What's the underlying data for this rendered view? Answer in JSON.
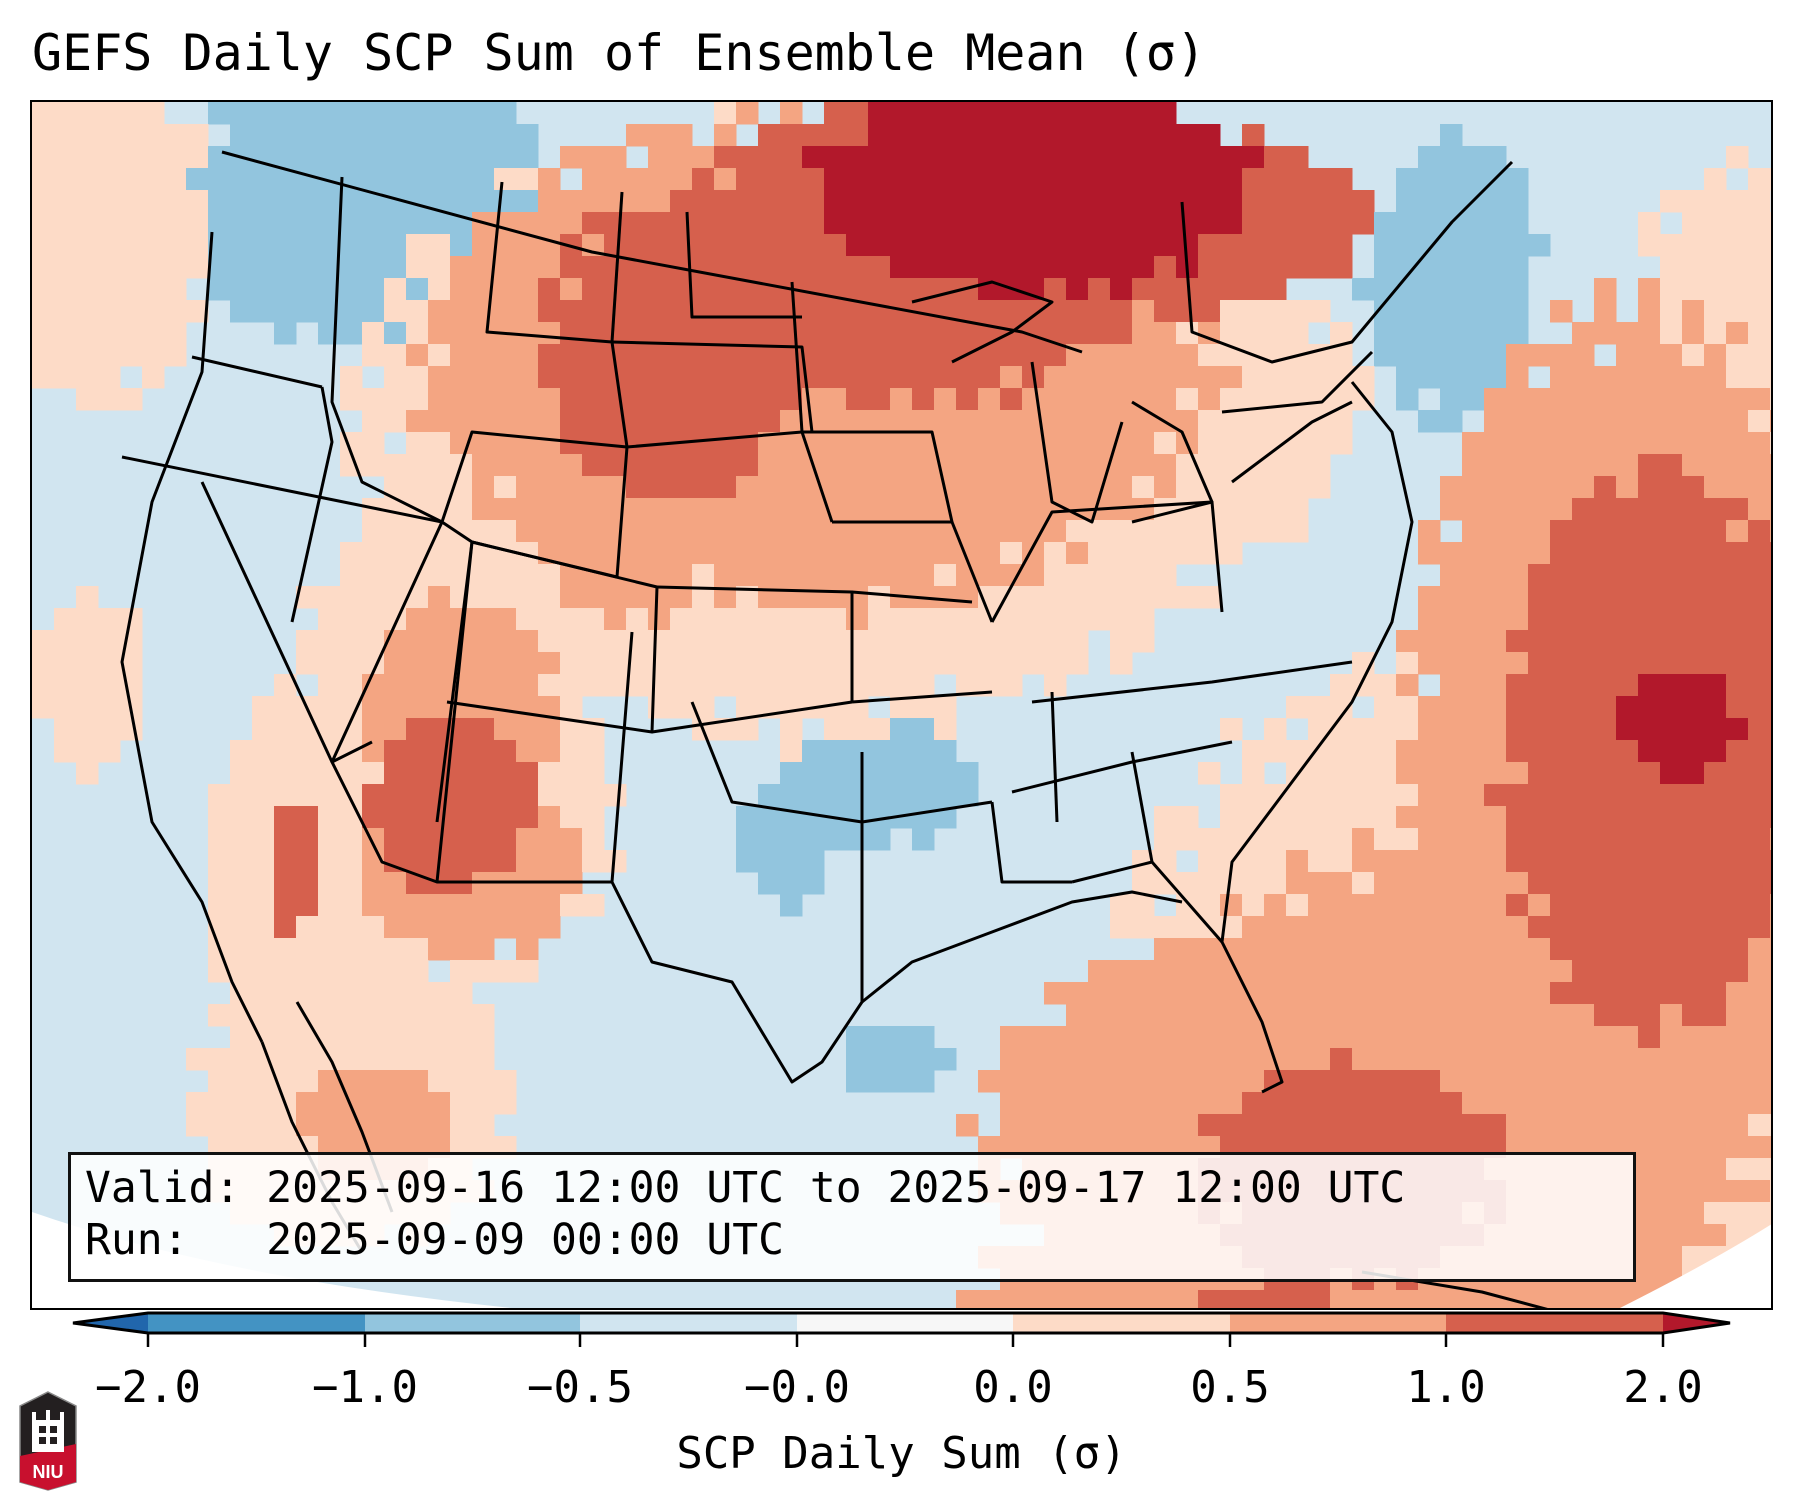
{
  "title": "GEFS Daily SCP Sum of Ensemble Mean (σ)",
  "info": {
    "valid_line": "Valid: 2025-09-16 12:00 UTC to 2025-09-17 12:00 UTC",
    "run_line": "Run:   2025-09-09 00:00 UTC"
  },
  "logo": {
    "text": "NIU",
    "colors": {
      "top": "#231f20",
      "bottom": "#c8102e"
    }
  },
  "chart_data": {
    "type": "heatmap",
    "title": "GEFS Daily SCP Sum of Ensemble Mean (σ)",
    "variable": "SCP Daily Sum (σ)",
    "region": "CONUS",
    "colorbar": {
      "label": "SCP Daily Sum (σ)",
      "tick_labels": [
        "−2.0",
        "−1.0",
        "−0.5",
        "−0.0",
        "0.0",
        "0.5",
        "1.0",
        "2.0"
      ],
      "bins": [
        {
          "range": "< -2.0",
          "color": "#2166ac"
        },
        {
          "range": "-2.0 to -1.0",
          "color": "#4393c3"
        },
        {
          "range": "-1.0 to -0.5",
          "color": "#92c5de"
        },
        {
          "range": "-0.5 to -0.0",
          "color": "#d1e5f0"
        },
        {
          "range": "-0.0 to 0.0",
          "color": "#f7f7f7"
        },
        {
          "range": "0.0 to 0.5",
          "color": "#fddbc7"
        },
        {
          "range": "0.5 to 1.0",
          "color": "#f4a582"
        },
        {
          "range": "1.0 to 2.0",
          "color": "#d6604d"
        },
        {
          "range": "> 2.0",
          "color": "#b2182b"
        }
      ],
      "extend": "both",
      "orientation": "horizontal"
    },
    "field_regions": [
      {
        "area": "Southern Canada prairies / northern Minnesota",
        "level": "1.0 to 2.0 (max > 2.0)"
      },
      {
        "area": "Montana / North Dakota / northern Wyoming",
        "level": "0.5 to 2.0"
      },
      {
        "area": "Utah / Arizona",
        "level": "0.5 to 2.0"
      },
      {
        "area": "Gulf of California / Baja",
        "level": "0.5 to 2.0"
      },
      {
        "area": "Western Atlantic off Carolinas",
        "level": "1.0 to 2.0 (max > 2.0)"
      },
      {
        "area": "Florida / Gulf of Mexico / Caribbean",
        "level": "0.5 to 2.0"
      },
      {
        "area": "Pacific Northwest / British Columbia",
        "level": "-1.0 to -0.5"
      },
      {
        "area": "Southern Plains (Kansas/Oklahoma)",
        "level": "-1.0 to -0.5"
      },
      {
        "area": "Remainder of CONUS",
        "level": "-0.5 to -0.0"
      }
    ]
  }
}
